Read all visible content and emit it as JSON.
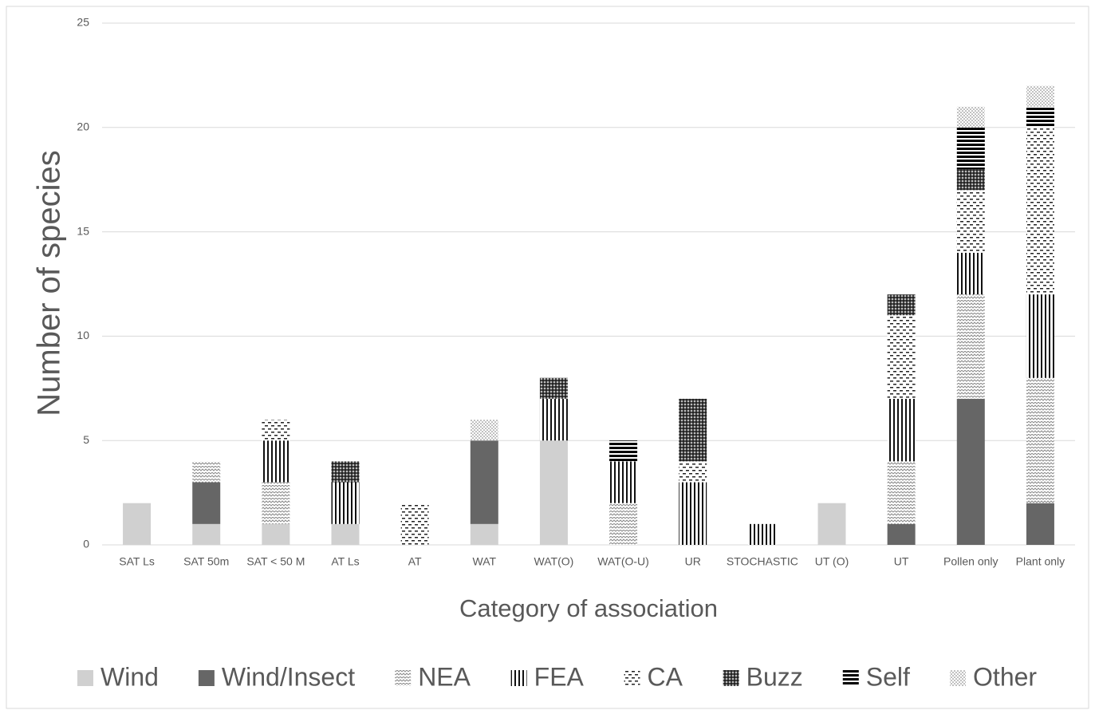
{
  "chart_data": {
    "type": "stacked_bar",
    "x_label": "Category of association",
    "y_label": "Number of species",
    "categories": [
      "SAT Ls",
      "SAT 50m",
      "SAT < 50 M",
      "AT Ls",
      "AT",
      "WAT",
      "WAT(O)",
      "WAT(O-U)",
      "UR",
      "STOCHASTIC",
      "UT (O)",
      "UT",
      "Pollen only",
      "Plant only"
    ],
    "series": [
      {
        "name": "Wind",
        "color": "#d0d0d0",
        "values": [
          2,
          1,
          1,
          1,
          0,
          1,
          5,
          0,
          0,
          0,
          2,
          0,
          0,
          0
        ]
      },
      {
        "name": "Wind/Insect",
        "color": "#666666",
        "values": [
          0,
          2,
          0,
          0,
          0,
          4,
          0,
          0,
          0,
          0,
          0,
          1,
          7,
          2
        ]
      },
      {
        "name": "NEA",
        "color": "#8a8a8a",
        "values": [
          0,
          1,
          2,
          0,
          0,
          0,
          0,
          2,
          0,
          0,
          0,
          3,
          5,
          6
        ]
      },
      {
        "name": "FEA",
        "color": "#111111",
        "values": [
          0,
          0,
          2,
          2,
          0,
          0,
          2,
          2,
          3,
          1,
          0,
          3,
          2,
          4
        ]
      },
      {
        "name": "CA",
        "color": "#222222",
        "values": [
          0,
          0,
          1,
          0,
          2,
          0,
          0,
          0,
          1,
          0,
          0,
          4,
          3,
          8
        ]
      },
      {
        "name": "Buzz",
        "color": "#222222",
        "values": [
          0,
          0,
          0,
          1,
          0,
          0,
          1,
          0,
          3,
          0,
          0,
          1,
          1,
          0
        ]
      },
      {
        "name": "Self",
        "color": "#000000",
        "values": [
          0,
          0,
          0,
          0,
          0,
          0,
          0,
          1,
          0,
          0,
          0,
          0,
          2,
          1
        ]
      },
      {
        "name": "Other",
        "color": "#777777",
        "values": [
          0,
          0,
          0,
          0,
          0,
          1,
          0,
          0,
          0,
          0,
          0,
          0,
          1,
          1
        ]
      }
    ],
    "ylim": [
      0,
      25
    ],
    "yticks": [
      0,
      5,
      10,
      15,
      20,
      25
    ],
    "grid": true,
    "legend": "bottom"
  }
}
